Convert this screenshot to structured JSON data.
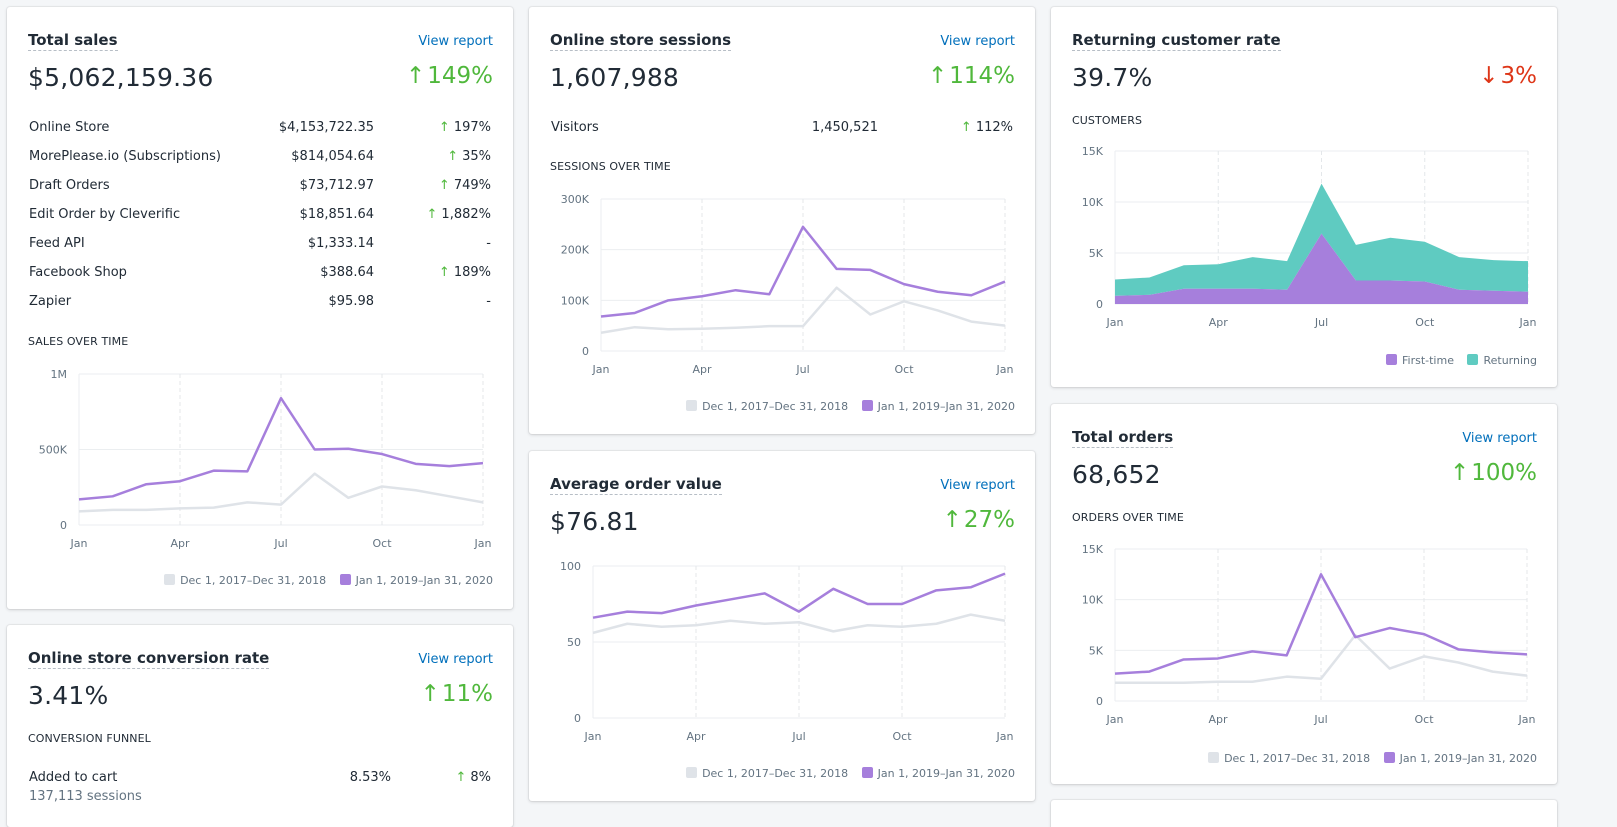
{
  "colors": {
    "current": "#a67fdc",
    "previous": "#dfe3e8",
    "returning": "#5fcbc1",
    "first_time": "#a67fdc",
    "up": "#50b83c",
    "down": "#de3618",
    "link": "#006fbb"
  },
  "legend": {
    "previous": "Dec 1, 2017–Dec 31, 2018",
    "current": "Jan 1, 2019–Jan 31, 2020"
  },
  "month_ticks": [
    "Jan",
    "Apr",
    "Jul",
    "Oct",
    "Jan"
  ],
  "total_sales": {
    "title": "Total sales",
    "link": "View report",
    "value": "$5,062,159.36",
    "arrow": "↑",
    "change": "149%",
    "rows": [
      {
        "name": "Online Store",
        "value": "$4,153,722.35",
        "arrow": "↑",
        "change": "197%"
      },
      {
        "name": "MorePlease.io (Subscriptions)",
        "value": "$814,054.64",
        "arrow": "↑",
        "change": "35%"
      },
      {
        "name": "Draft Orders",
        "value": "$73,712.97",
        "arrow": "↑",
        "change": "749%"
      },
      {
        "name": "Edit Order by Cleverific",
        "value": "$18,851.64",
        "arrow": "↑",
        "change": "1,882%"
      },
      {
        "name": "Feed API",
        "value": "$1,333.14",
        "arrow": "",
        "change": "-"
      },
      {
        "name": "Facebook Shop",
        "value": "$388.64",
        "arrow": "↑",
        "change": "189%"
      },
      {
        "name": "Zapier",
        "value": "$95.98",
        "arrow": "",
        "change": "-"
      }
    ],
    "section": "SALES OVER TIME"
  },
  "conversion": {
    "title": "Online store conversion rate",
    "link": "View report",
    "value": "3.41%",
    "arrow": "↑",
    "change": "11%",
    "section": "CONVERSION FUNNEL",
    "rows": [
      {
        "name": "Added to cart",
        "value": "8.53%",
        "arrow": "↑",
        "change": "8%",
        "sub": "137,113 sessions"
      }
    ]
  },
  "sessions": {
    "title": "Online store sessions",
    "link": "View report",
    "value": "1,607,988",
    "arrow": "↑",
    "change": "114%",
    "rows": [
      {
        "name": "Visitors",
        "value": "1,450,521",
        "arrow": "↑",
        "change": "112%"
      }
    ],
    "section": "SESSIONS OVER TIME"
  },
  "aov": {
    "title": "Average order value",
    "link": "View report",
    "value": "$76.81",
    "arrow": "↑",
    "change": "27%"
  },
  "returning": {
    "title": "Returning customer rate",
    "value": "39.7%",
    "arrow": "↓",
    "change": "3%",
    "section": "CUSTOMERS",
    "legend_first": "First-time",
    "legend_returning": "Returning"
  },
  "orders": {
    "title": "Total orders",
    "link": "View report",
    "value": "68,652",
    "arrow": "↑",
    "change": "100%",
    "section": "ORDERS OVER TIME"
  },
  "chart_data": [
    {
      "id": "sales",
      "type": "line",
      "x": [
        0,
        1,
        2,
        3,
        4,
        5,
        6,
        7,
        8,
        9,
        10,
        11,
        12
      ],
      "x_ticks": [
        "Jan",
        "Apr",
        "Jul",
        "Oct",
        "Jan"
      ],
      "y_ticks": [
        "0",
        "500K",
        "1M"
      ],
      "ylim": [
        0,
        1000000
      ],
      "series": [
        {
          "name": "Jan 1, 2019–Jan 31, 2020",
          "values": [
            170000,
            190000,
            270000,
            290000,
            360000,
            355000,
            840000,
            500000,
            505000,
            470000,
            405000,
            390000,
            410000
          ]
        },
        {
          "name": "Dec 1, 2017–Dec 31, 2018",
          "values": [
            90000,
            100000,
            100000,
            110000,
            115000,
            150000,
            135000,
            340000,
            180000,
            255000,
            230000,
            190000,
            150000
          ]
        }
      ]
    },
    {
      "id": "sessions",
      "type": "line",
      "x": [
        0,
        1,
        2,
        3,
        4,
        5,
        6,
        7,
        8,
        9,
        10,
        11,
        12
      ],
      "x_ticks": [
        "Jan",
        "Apr",
        "Jul",
        "Oct",
        "Jan"
      ],
      "y_ticks": [
        "0",
        "100K",
        "200K",
        "300K"
      ],
      "ylim": [
        0,
        300000
      ],
      "series": [
        {
          "name": "Jan 1, 2019–Jan 31, 2020",
          "values": [
            68000,
            75000,
            100000,
            108000,
            120000,
            112000,
            245000,
            162000,
            160000,
            132000,
            117000,
            110000,
            137000
          ]
        },
        {
          "name": "Dec 1, 2017–Dec 31, 2018",
          "values": [
            36000,
            47000,
            43000,
            44000,
            46000,
            49000,
            49000,
            125000,
            72000,
            98000,
            80000,
            58000,
            50000
          ]
        }
      ]
    },
    {
      "id": "aov",
      "type": "line",
      "x": [
        0,
        1,
        2,
        3,
        4,
        5,
        6,
        7,
        8,
        9,
        10,
        11,
        12
      ],
      "x_ticks": [
        "Jan",
        "Apr",
        "Jul",
        "Oct",
        "Jan"
      ],
      "y_ticks": [
        "0",
        "50",
        "100"
      ],
      "ylim": [
        0,
        100
      ],
      "series": [
        {
          "name": "Jan 1, 2019–Jan 31, 2020",
          "values": [
            66,
            70,
            69,
            74,
            78,
            82,
            70,
            85,
            75,
            75,
            84,
            86,
            95
          ]
        },
        {
          "name": "Dec 1, 2017–Dec 31, 2018",
          "values": [
            56,
            62,
            60,
            61,
            64,
            62,
            63,
            57,
            61,
            60,
            62,
            68,
            64
          ]
        }
      ]
    },
    {
      "id": "customers",
      "type": "area",
      "x": [
        0,
        1,
        2,
        3,
        4,
        5,
        6,
        7,
        8,
        9,
        10,
        11,
        12
      ],
      "x_ticks": [
        "Jan",
        "Apr",
        "Jul",
        "Oct",
        "Jan"
      ],
      "y_ticks": [
        "0",
        "5K",
        "10K",
        "15K"
      ],
      "ylim": [
        0,
        15000
      ],
      "series": [
        {
          "name": "First-time",
          "values": [
            800,
            900,
            1500,
            1500,
            1500,
            1400,
            6900,
            2300,
            2300,
            2200,
            1400,
            1300,
            1200
          ]
        },
        {
          "name": "Returning",
          "values": [
            1600,
            1700,
            2300,
            2400,
            3100,
            2800,
            4900,
            3500,
            4200,
            3900,
            3200,
            3000,
            3000
          ]
        }
      ]
    },
    {
      "id": "orders",
      "type": "line",
      "x": [
        0,
        1,
        2,
        3,
        4,
        5,
        6,
        7,
        8,
        9,
        10,
        11,
        12
      ],
      "x_ticks": [
        "Jan",
        "Apr",
        "Jul",
        "Oct",
        "Jan"
      ],
      "y_ticks": [
        "0",
        "5K",
        "10K",
        "15K"
      ],
      "ylim": [
        0,
        15000
      ],
      "series": [
        {
          "name": "Jan 1, 2019–Jan 31, 2020",
          "values": [
            2700,
            2900,
            4100,
            4200,
            4900,
            4500,
            12500,
            6300,
            7200,
            6600,
            5100,
            4800,
            4600
          ]
        },
        {
          "name": "Dec 1, 2017–Dec 31, 2018",
          "values": [
            1800,
            1800,
            1800,
            1900,
            1900,
            2400,
            2200,
            6500,
            3200,
            4400,
            3800,
            2900,
            2500
          ]
        }
      ]
    }
  ]
}
